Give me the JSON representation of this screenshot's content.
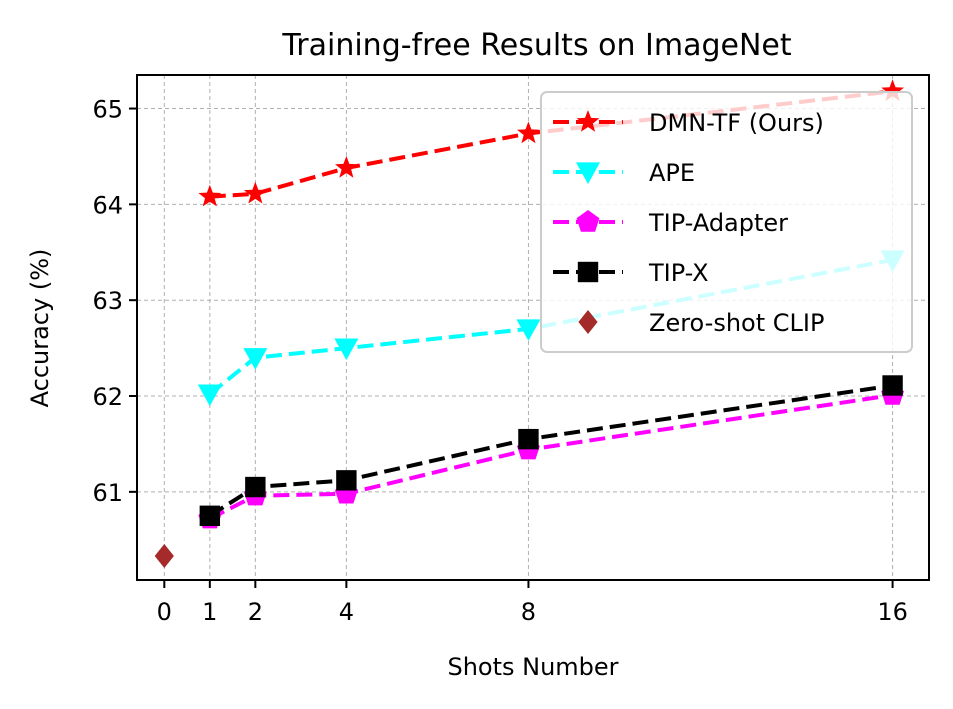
{
  "chart_data": {
    "type": "line",
    "title": "Training-free Results on ImageNet",
    "xlabel": "Shots Number",
    "ylabel": "Accuracy (%)",
    "x_ticks": [
      0,
      1,
      2,
      4,
      8,
      16
    ],
    "y_ticks": [
      61,
      62,
      63,
      64,
      65
    ],
    "xlim": [
      -0.6,
      16.8
    ],
    "ylim": [
      60.08,
      65.35
    ],
    "grid": true,
    "legend_position": "top-right",
    "series": [
      {
        "name": "DMN-TF (Ours)",
        "color": "#ff0000",
        "marker": "star",
        "line": "dashed",
        "x": [
          1,
          2,
          4,
          8,
          16
        ],
        "y": [
          64.08,
          64.11,
          64.38,
          64.74,
          65.18
        ]
      },
      {
        "name": "APE",
        "color": "#00ffff",
        "marker": "triangle-down",
        "line": "dashed",
        "x": [
          1,
          2,
          4,
          8,
          16
        ],
        "y": [
          62.02,
          62.4,
          62.5,
          62.7,
          63.42
        ]
      },
      {
        "name": "TIP-Adapter",
        "color": "#ff00ff",
        "marker": "pentagon",
        "line": "dashed",
        "x": [
          1,
          2,
          4,
          8,
          16
        ],
        "y": [
          60.72,
          60.96,
          60.98,
          61.44,
          62.01
        ]
      },
      {
        "name": "TIP-X",
        "color": "#000000",
        "marker": "square",
        "line": "dashed",
        "x": [
          1,
          2,
          4,
          8,
          16
        ],
        "y": [
          60.75,
          61.05,
          61.12,
          61.55,
          62.11
        ]
      },
      {
        "name": "Zero-shot CLIP",
        "color": "#a52a2a",
        "marker": "diamond",
        "line": "none",
        "x": [
          0
        ],
        "y": [
          60.33
        ]
      }
    ]
  }
}
